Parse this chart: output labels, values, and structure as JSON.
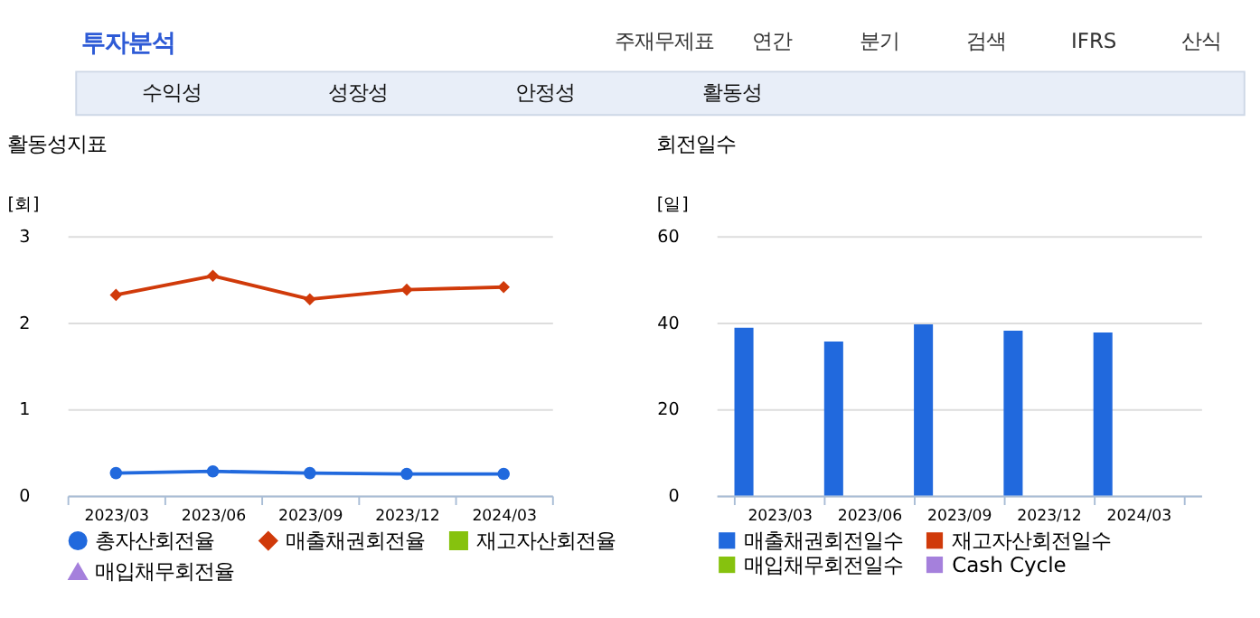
{
  "chart_data": [
    {
      "type": "other",
      "title": "투자분석",
      "annotations": [
        "주재무제표",
        "연간",
        "분기",
        "검색",
        "IFRS",
        "산식",
        "수익성",
        "성장성",
        "안정성",
        "활동성"
      ]
    },
    {
      "type": "line",
      "title": "활동성지표",
      "ylabel": "[회]",
      "categories": [
        "2023/03",
        "2023/06",
        "2023/09",
        "2023/12",
        "2024/03"
      ],
      "ylim": [
        0,
        3
      ],
      "yticks": [
        0,
        1,
        2,
        3
      ],
      "grid": "y",
      "legend": "bottom",
      "series": [
        {
          "name": "총자산회전율",
          "color": "#2169dd",
          "marker": "circle",
          "values": [
            0.26,
            0.28,
            0.26,
            0.25,
            0.25
          ]
        },
        {
          "name": "매출채권회전율",
          "color": "#d03a0a",
          "marker": "diamond",
          "values": [
            2.32,
            2.54,
            2.27,
            2.38,
            2.41
          ]
        },
        {
          "name": "재고자산회전율",
          "color": "#86c20e",
          "marker": "square",
          "values": [
            null,
            null,
            null,
            null,
            null
          ]
        },
        {
          "name": "매입채무회전율",
          "color": "#a580dc",
          "marker": "triangle",
          "values": [
            null,
            null,
            null,
            null,
            null
          ]
        }
      ]
    },
    {
      "type": "bar",
      "title": "회전일수",
      "ylabel": "[일]",
      "categories": [
        "2023/03",
        "2023/06",
        "2023/09",
        "2023/12",
        "2024/03"
      ],
      "ylim": [
        0,
        60
      ],
      "yticks": [
        0,
        20,
        40,
        60
      ],
      "grid": "y",
      "legend": "bottom",
      "series": [
        {
          "name": "매출채권회전일수",
          "color": "#2169dd",
          "values": [
            38.8,
            35.6,
            39.6,
            38.1,
            37.7
          ]
        },
        {
          "name": "재고자산회전일수",
          "color": "#d03a0a",
          "values": [
            null,
            null,
            null,
            null,
            null
          ]
        },
        {
          "name": "매입채무회전일수",
          "color": "#86c20e",
          "values": [
            null,
            null,
            null,
            null,
            null
          ]
        },
        {
          "name": "Cash Cycle",
          "color": "#a580dc",
          "values": [
            null,
            null,
            null,
            null,
            null
          ]
        }
      ]
    }
  ]
}
